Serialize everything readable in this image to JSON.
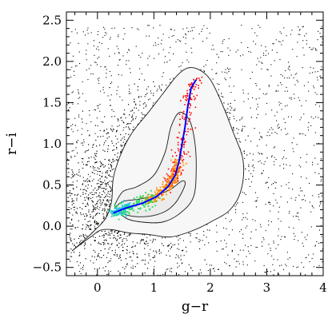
{
  "chart_data": {
    "type": "scatter",
    "xlabel": "g−r",
    "ylabel": "r−i",
    "xlim": [
      -0.55,
      4.0
    ],
    "ylim": [
      -0.6,
      2.6
    ],
    "xticks": [
      {
        "value": 0,
        "label": "0"
      },
      {
        "value": 1,
        "label": "1"
      },
      {
        "value": 2,
        "label": "2"
      },
      {
        "value": 3,
        "label": "3"
      },
      {
        "value": 4,
        "label": "4"
      }
    ],
    "yticks": [
      {
        "value": -0.5,
        "label": "−0.5"
      },
      {
        "value": 0.0,
        "label": "0.0"
      },
      {
        "value": 0.5,
        "label": "0.5"
      },
      {
        "value": 1.0,
        "label": "1.0"
      },
      {
        "value": 1.5,
        "label": "1.5"
      },
      {
        "value": 2.0,
        "label": "2.0"
      },
      {
        "value": 2.5,
        "label": "2.5"
      }
    ],
    "grid": false,
    "legend": "none",
    "colors": {
      "scatter": "#000000",
      "contour": "#1a1a1a",
      "locus_line": "#0000ff",
      "red_points": "#ff0000",
      "orange_points": "#ff8c00",
      "green_points": "#22dd55",
      "cyan_points": "#22ccee"
    },
    "contours": [
      {
        "level": "outer",
        "points": [
          [
            -0.45,
            -0.3
          ],
          [
            -0.3,
            -0.22
          ],
          [
            -0.1,
            -0.12
          ],
          [
            0.05,
            -0.05
          ],
          [
            0.25,
            -0.04
          ],
          [
            0.55,
            -0.08
          ],
          [
            0.9,
            -0.1
          ],
          [
            1.3,
            -0.13
          ],
          [
            1.7,
            -0.05
          ],
          [
            2.0,
            0.05
          ],
          [
            2.35,
            0.2
          ],
          [
            2.55,
            0.45
          ],
          [
            2.58,
            0.8
          ],
          [
            2.4,
            1.15
          ],
          [
            2.2,
            1.5
          ],
          [
            2.0,
            1.78
          ],
          [
            1.8,
            1.9
          ],
          [
            1.6,
            1.92
          ],
          [
            1.4,
            1.82
          ],
          [
            1.15,
            1.6
          ],
          [
            0.9,
            1.38
          ],
          [
            0.6,
            1.12
          ],
          [
            0.4,
            0.85
          ],
          [
            0.28,
            0.58
          ],
          [
            0.25,
            0.3
          ],
          [
            0.15,
            0.1
          ],
          [
            -0.05,
            -0.05
          ],
          [
            -0.25,
            -0.18
          ],
          [
            -0.45,
            -0.3
          ]
        ]
      },
      {
        "level": "middle",
        "points": [
          [
            0.3,
            0.25
          ],
          [
            0.5,
            0.1
          ],
          [
            0.8,
            0.05
          ],
          [
            1.15,
            0.05
          ],
          [
            1.45,
            0.15
          ],
          [
            1.7,
            0.35
          ],
          [
            1.75,
            0.7
          ],
          [
            1.72,
            1.05
          ],
          [
            1.62,
            1.3
          ],
          [
            1.45,
            1.38
          ],
          [
            1.3,
            1.2
          ],
          [
            1.2,
            0.9
          ],
          [
            1.0,
            0.62
          ],
          [
            0.7,
            0.48
          ],
          [
            0.45,
            0.42
          ],
          [
            0.3,
            0.25
          ]
        ]
      },
      {
        "level": "inner",
        "points": [
          [
            0.3,
            0.22
          ],
          [
            0.55,
            0.13
          ],
          [
            0.9,
            0.12
          ],
          [
            1.2,
            0.18
          ],
          [
            1.4,
            0.3
          ],
          [
            1.55,
            0.5
          ],
          [
            1.5,
            0.55
          ],
          [
            1.3,
            0.45
          ],
          [
            1.05,
            0.38
          ],
          [
            0.75,
            0.33
          ],
          [
            0.45,
            0.3
          ],
          [
            0.3,
            0.22
          ]
        ]
      }
    ],
    "locus_line": [
      [
        0.28,
        0.16
      ],
      [
        0.5,
        0.22
      ],
      [
        0.8,
        0.28
      ],
      [
        1.05,
        0.36
      ],
      [
        1.25,
        0.48
      ],
      [
        1.38,
        0.62
      ],
      [
        1.45,
        0.8
      ],
      [
        1.5,
        1.0
      ],
      [
        1.55,
        1.2
      ],
      [
        1.6,
        1.45
      ],
      [
        1.66,
        1.68
      ],
      [
        1.75,
        1.78
      ]
    ],
    "point_clouds": [
      {
        "name": "",
        "color_key": "red_points",
        "along_locus": true,
        "t_range": [
          0.35,
          1.0
        ],
        "spread": 0.06,
        "count": 220
      },
      {
        "name": "",
        "color_key": "orange_points",
        "along_locus": true,
        "t_range": [
          0.2,
          0.55
        ],
        "spread": 0.05,
        "count": 220
      },
      {
        "name": "",
        "color_key": "green_points",
        "along_locus": true,
        "t_range": [
          0.0,
          0.25
        ],
        "spread": 0.06,
        "count": 160
      },
      {
        "name": "",
        "color_key": "cyan_points",
        "along_locus": true,
        "t_range": [
          0.0,
          0.12
        ],
        "spread": 0.05,
        "count": 80
      }
    ]
  }
}
